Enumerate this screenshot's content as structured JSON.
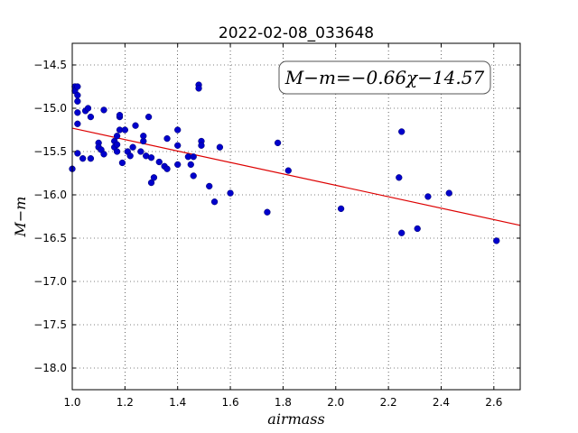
{
  "chart_data": {
    "type": "scatter",
    "title": "2022-02-08_033648",
    "xlabel": "airmass",
    "ylabel": "M−m",
    "xlim": [
      1.0,
      2.7
    ],
    "ylim": [
      -18.25,
      -14.25
    ],
    "xticks": [
      1.0,
      1.2,
      1.4,
      1.6,
      1.8,
      2.0,
      2.2,
      2.4,
      2.6
    ],
    "xtick_labels": [
      "1.0",
      "1.2",
      "1.4",
      "1.6",
      "1.8",
      "2.0",
      "2.2",
      "2.4",
      "2.6"
    ],
    "yticks": [
      -14.5,
      -15.0,
      -15.5,
      -16.0,
      -16.5,
      -17.0,
      -17.5,
      -18.0
    ],
    "ytick_labels": [
      "−14.5",
      "−15.0",
      "−15.5",
      "−16.0",
      "−16.5",
      "−17.0",
      "−17.5",
      "−18.0"
    ],
    "grid": true,
    "annotation": "M−m=−0.66χ−14.57",
    "annotation_position": "top-right",
    "point_color": "#0000cc",
    "fit_color": "#dd0000",
    "fit": {
      "slope": -0.66,
      "intercept": -14.57
    },
    "points": [
      {
        "x": 1.0,
        "y": -15.7
      },
      {
        "x": 1.01,
        "y": -14.75
      },
      {
        "x": 1.01,
        "y": -14.8
      },
      {
        "x": 1.02,
        "y": -14.75
      },
      {
        "x": 1.02,
        "y": -14.85
      },
      {
        "x": 1.02,
        "y": -14.92
      },
      {
        "x": 1.02,
        "y": -15.05
      },
      {
        "x": 1.02,
        "y": -15.18
      },
      {
        "x": 1.02,
        "y": -15.52
      },
      {
        "x": 1.04,
        "y": -15.58
      },
      {
        "x": 1.05,
        "y": -15.03
      },
      {
        "x": 1.06,
        "y": -15.0
      },
      {
        "x": 1.07,
        "y": -15.1
      },
      {
        "x": 1.07,
        "y": -15.58
      },
      {
        "x": 1.1,
        "y": -15.4
      },
      {
        "x": 1.1,
        "y": -15.45
      },
      {
        "x": 1.11,
        "y": -15.48
      },
      {
        "x": 1.12,
        "y": -15.02
      },
      {
        "x": 1.12,
        "y": -15.53
      },
      {
        "x": 1.16,
        "y": -15.45
      },
      {
        "x": 1.16,
        "y": -15.38
      },
      {
        "x": 1.17,
        "y": -15.32
      },
      {
        "x": 1.17,
        "y": -15.42
      },
      {
        "x": 1.17,
        "y": -15.5
      },
      {
        "x": 1.18,
        "y": -15.1
      },
      {
        "x": 1.18,
        "y": -15.08
      },
      {
        "x": 1.18,
        "y": -15.25
      },
      {
        "x": 1.19,
        "y": -15.63
      },
      {
        "x": 1.2,
        "y": -15.25
      },
      {
        "x": 1.21,
        "y": -15.5
      },
      {
        "x": 1.22,
        "y": -15.55
      },
      {
        "x": 1.23,
        "y": -15.45
      },
      {
        "x": 1.24,
        "y": -15.2
      },
      {
        "x": 1.26,
        "y": -15.5
      },
      {
        "x": 1.27,
        "y": -15.38
      },
      {
        "x": 1.27,
        "y": -15.32
      },
      {
        "x": 1.28,
        "y": -15.55
      },
      {
        "x": 1.29,
        "y": -15.1
      },
      {
        "x": 1.3,
        "y": -15.57
      },
      {
        "x": 1.3,
        "y": -15.86
      },
      {
        "x": 1.31,
        "y": -15.8
      },
      {
        "x": 1.33,
        "y": -15.62
      },
      {
        "x": 1.35,
        "y": -15.67
      },
      {
        "x": 1.36,
        "y": -15.7
      },
      {
        "x": 1.36,
        "y": -15.35
      },
      {
        "x": 1.4,
        "y": -15.25
      },
      {
        "x": 1.4,
        "y": -15.43
      },
      {
        "x": 1.4,
        "y": -15.65
      },
      {
        "x": 1.44,
        "y": -15.56
      },
      {
        "x": 1.45,
        "y": -15.65
      },
      {
        "x": 1.46,
        "y": -15.56
      },
      {
        "x": 1.46,
        "y": -15.78
      },
      {
        "x": 1.48,
        "y": -14.73
      },
      {
        "x": 1.48,
        "y": -14.77
      },
      {
        "x": 1.49,
        "y": -15.38
      },
      {
        "x": 1.49,
        "y": -15.43
      },
      {
        "x": 1.52,
        "y": -15.9
      },
      {
        "x": 1.54,
        "y": -16.08
      },
      {
        "x": 1.56,
        "y": -15.45
      },
      {
        "x": 1.6,
        "y": -15.98
      },
      {
        "x": 1.74,
        "y": -16.2
      },
      {
        "x": 1.78,
        "y": -15.4
      },
      {
        "x": 1.82,
        "y": -15.72
      },
      {
        "x": 2.02,
        "y": -16.16
      },
      {
        "x": 2.24,
        "y": -15.8
      },
      {
        "x": 2.25,
        "y": -15.27
      },
      {
        "x": 2.25,
        "y": -16.44
      },
      {
        "x": 2.31,
        "y": -16.39
      },
      {
        "x": 2.35,
        "y": -16.02
      },
      {
        "x": 2.43,
        "y": -15.98
      },
      {
        "x": 2.61,
        "y": -16.53
      }
    ]
  }
}
